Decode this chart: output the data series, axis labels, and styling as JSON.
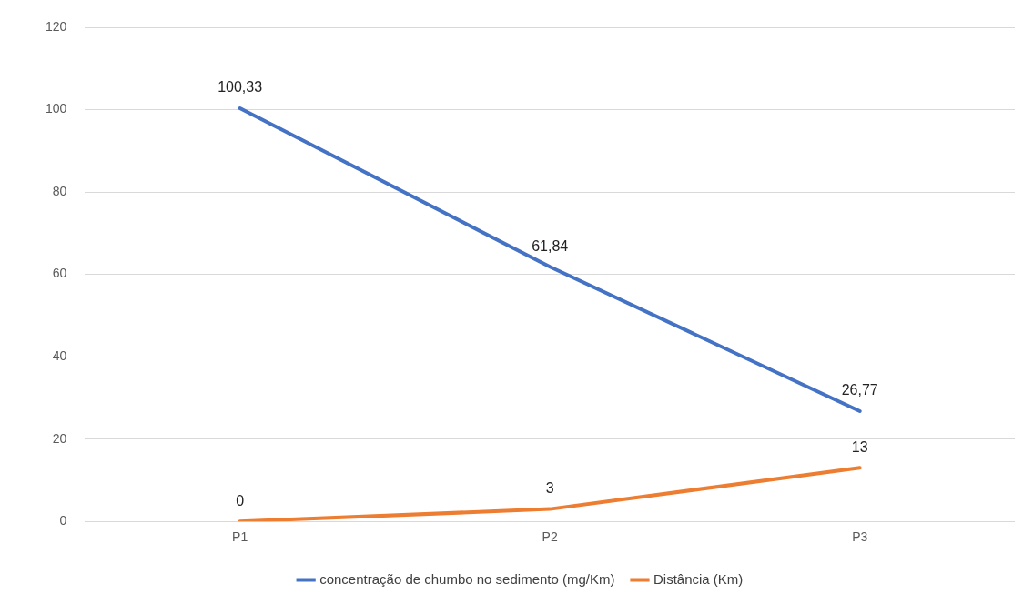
{
  "chart_data": {
    "type": "line",
    "categories": [
      "P1",
      "P2",
      "P3"
    ],
    "series": [
      {
        "name": "concentração de chumbo no sedimento (mg/Km)",
        "color": "#4472c4",
        "values": [
          100.33,
          61.84,
          26.77
        ],
        "value_labels": [
          "100,33",
          "61,84",
          "26,77"
        ]
      },
      {
        "name": "Distância (Km)",
        "color": "#ed7d31",
        "values": [
          0,
          3,
          13
        ],
        "value_labels": [
          "0",
          "3",
          "13"
        ]
      }
    ],
    "ylim": [
      0,
      120
    ],
    "yticks": [
      0,
      20,
      40,
      60,
      80,
      100,
      120
    ],
    "grid": "y",
    "legend": "bottom",
    "marker": "none",
    "line_style": "solid"
  }
}
